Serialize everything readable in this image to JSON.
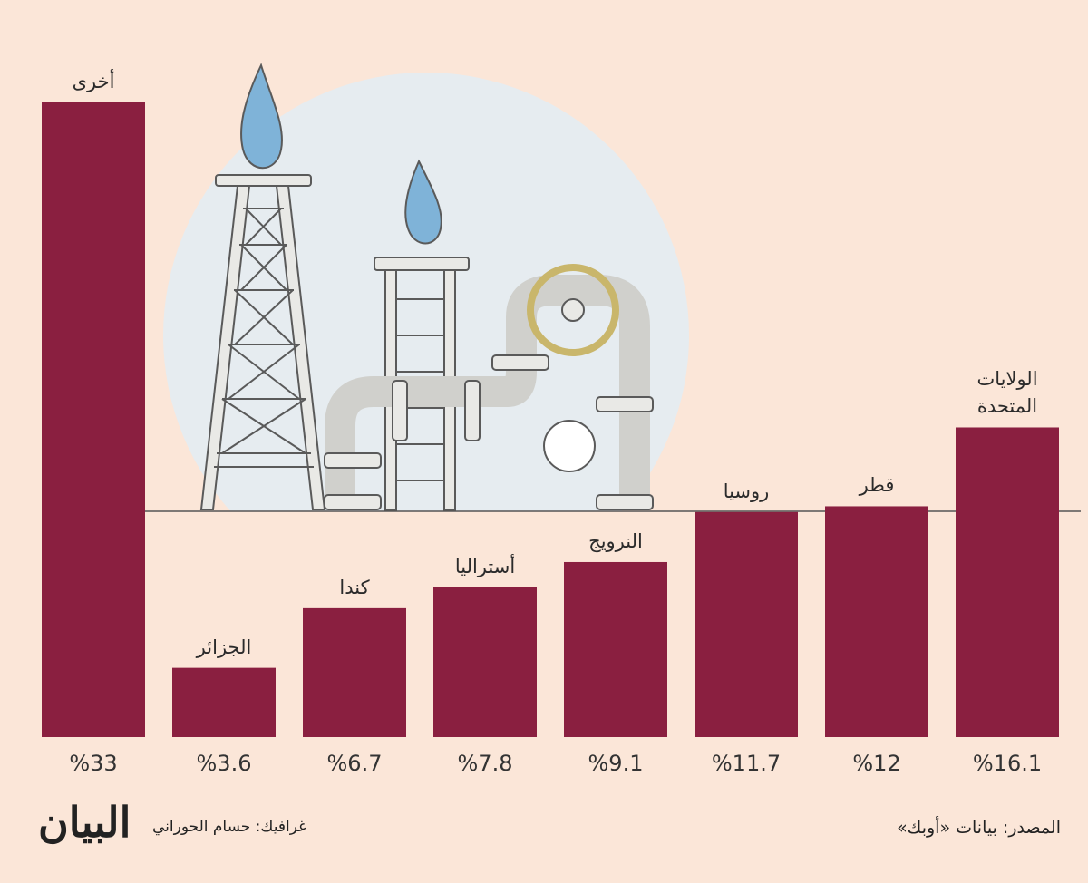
{
  "chart_data": {
    "type": "bar",
    "categories": [
      "أخرى",
      "الجزائر",
      "كندا",
      "أستراليا",
      "النرويج",
      "روسيا",
      "قطر",
      "الولايات المتحدة"
    ],
    "values": [
      33,
      3.6,
      6.7,
      7.8,
      9.1,
      11.7,
      12,
      16.1
    ],
    "value_labels": [
      "%33",
      "%3.6",
      "%6.7",
      "%7.8",
      "%9.1",
      "%11.7",
      "%12",
      "%16.1"
    ],
    "color": "#8a1f40",
    "source": "المصدر: بيانات «أوبك»",
    "credit": "غرافيك: حسام الحوراني",
    "logo": "البيان"
  }
}
